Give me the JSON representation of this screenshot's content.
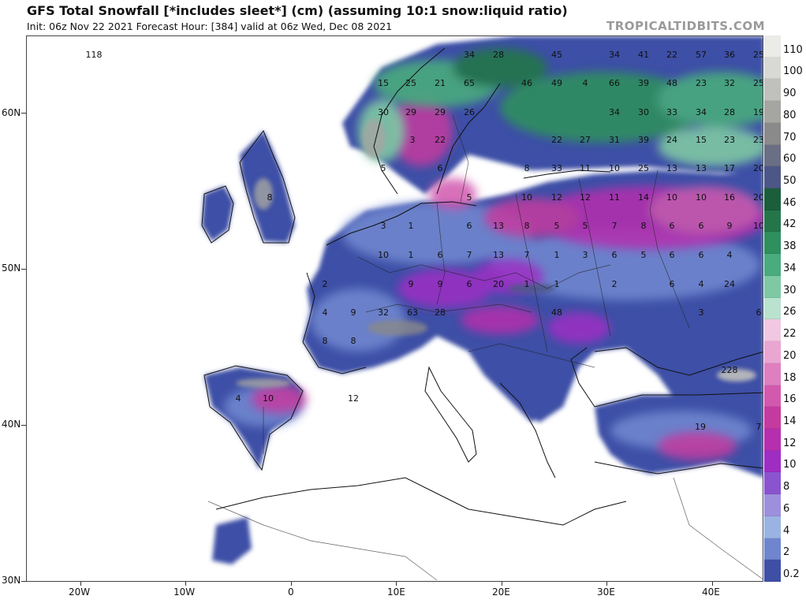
{
  "header": {
    "title": "GFS Total Snowfall [*includes sleet*] (cm) (assuming 10:1 snow:liquid ratio)",
    "subtitle": "Init: 06z Nov 22 2021   Forecast Hour: [384]   valid at 06z Wed, Dec 08 2021",
    "brand": "TROPICALTIDBITS.COM"
  },
  "axes": {
    "lat_labels": [
      "60N",
      "50N",
      "40N",
      "30N"
    ],
    "lon_labels": [
      "20W",
      "10W",
      "0",
      "10E",
      "20E",
      "30E",
      "40E"
    ]
  },
  "legend": {
    "items": [
      {
        "label": "110",
        "color": "#ebebe8"
      },
      {
        "label": "100",
        "color": "#d8d8d4"
      },
      {
        "label": "90",
        "color": "#c0c0bc"
      },
      {
        "label": "80",
        "color": "#a5a5a2"
      },
      {
        "label": "70",
        "color": "#8a8a8a"
      },
      {
        "label": "60",
        "color": "#6b6f85"
      },
      {
        "label": "50",
        "color": "#4c5788"
      },
      {
        "label": "46",
        "color": "#1b5e3b"
      },
      {
        "label": "42",
        "color": "#24764a"
      },
      {
        "label": "38",
        "color": "#2f8f5e"
      },
      {
        "label": "34",
        "color": "#4aab7e"
      },
      {
        "label": "30",
        "color": "#7fc8a4"
      },
      {
        "label": "26",
        "color": "#b9e2cf"
      },
      {
        "label": "22",
        "color": "#f2c7e2"
      },
      {
        "label": "20",
        "color": "#e9a6d2"
      },
      {
        "label": "18",
        "color": "#de7fc0"
      },
      {
        "label": "16",
        "color": "#d259ae"
      },
      {
        "label": "14",
        "color": "#c53a9f"
      },
      {
        "label": "12",
        "color": "#b62fae"
      },
      {
        "label": "10",
        "color": "#9e2dc4"
      },
      {
        "label": "8",
        "color": "#8a54d0"
      },
      {
        "label": "6",
        "color": "#9d8fdc"
      },
      {
        "label": "4",
        "color": "#9bb3e3"
      },
      {
        "label": "2",
        "color": "#6f86cf"
      },
      {
        "label": "0.2",
        "color": "#3e4fa6"
      }
    ]
  },
  "map_values": [
    {
      "t": "118"
    },
    {
      "t": "34"
    },
    {
      "t": "28"
    },
    {
      "t": "45"
    },
    {
      "t": "34"
    },
    {
      "t": "41"
    },
    {
      "t": "22"
    },
    {
      "t": "57"
    },
    {
      "t": "36"
    },
    {
      "t": "25"
    },
    {
      "t": "15"
    },
    {
      "t": "25"
    },
    {
      "t": "21"
    },
    {
      "t": "65"
    },
    {
      "t": "46"
    },
    {
      "t": "49"
    },
    {
      "t": "4"
    },
    {
      "t": "66"
    },
    {
      "t": "39"
    },
    {
      "t": "48"
    },
    {
      "t": "23"
    },
    {
      "t": "32"
    },
    {
      "t": "25"
    },
    {
      "t": "30"
    },
    {
      "t": "29"
    },
    {
      "t": "29"
    },
    {
      "t": "26"
    },
    {
      "t": "34"
    },
    {
      "t": "30"
    },
    {
      "t": "33"
    },
    {
      "t": "34"
    },
    {
      "t": "28"
    },
    {
      "t": "19"
    },
    {
      "t": "3"
    },
    {
      "t": "22"
    },
    {
      "t": "22"
    },
    {
      "t": "27"
    },
    {
      "t": "31"
    },
    {
      "t": "39"
    },
    {
      "t": "24"
    },
    {
      "t": "15"
    },
    {
      "t": "23"
    },
    {
      "t": "23"
    },
    {
      "t": "5"
    },
    {
      "t": "6"
    },
    {
      "t": "8"
    },
    {
      "t": "33"
    },
    {
      "t": "11"
    },
    {
      "t": "10"
    },
    {
      "t": "25"
    },
    {
      "t": "13"
    },
    {
      "t": "13"
    },
    {
      "t": "17"
    },
    {
      "t": "20"
    },
    {
      "t": "8"
    },
    {
      "t": "5"
    },
    {
      "t": "10"
    },
    {
      "t": "12"
    },
    {
      "t": "12"
    },
    {
      "t": "11"
    },
    {
      "t": "14"
    },
    {
      "t": "10"
    },
    {
      "t": "10"
    },
    {
      "t": "16"
    },
    {
      "t": "20"
    },
    {
      "t": "3"
    },
    {
      "t": "1"
    },
    {
      "t": "6"
    },
    {
      "t": "13"
    },
    {
      "t": "8"
    },
    {
      "t": "5"
    },
    {
      "t": "5"
    },
    {
      "t": "7"
    },
    {
      "t": "8"
    },
    {
      "t": "6"
    },
    {
      "t": "6"
    },
    {
      "t": "9"
    },
    {
      "t": "10"
    },
    {
      "t": "10"
    },
    {
      "t": "1"
    },
    {
      "t": "6"
    },
    {
      "t": "7"
    },
    {
      "t": "13"
    },
    {
      "t": "7"
    },
    {
      "t": "1"
    },
    {
      "t": "3"
    },
    {
      "t": "6"
    },
    {
      "t": "5"
    },
    {
      "t": "6"
    },
    {
      "t": "6"
    },
    {
      "t": "4"
    },
    {
      "t": "2"
    },
    {
      "t": "9"
    },
    {
      "t": "9"
    },
    {
      "t": "6"
    },
    {
      "t": "20"
    },
    {
      "t": "1"
    },
    {
      "t": "1"
    },
    {
      "t": "2"
    },
    {
      "t": "6"
    },
    {
      "t": "4"
    },
    {
      "t": "24"
    },
    {
      "t": "4"
    },
    {
      "t": "9"
    },
    {
      "t": "32"
    },
    {
      "t": "63"
    },
    {
      "t": "28"
    },
    {
      "t": "48"
    },
    {
      "t": "3"
    },
    {
      "t": "6"
    },
    {
      "t": "8"
    },
    {
      "t": "8"
    },
    {
      "t": "228"
    },
    {
      "t": "4"
    },
    {
      "t": "10"
    },
    {
      "t": "12"
    },
    {
      "t": "19"
    },
    {
      "t": "7"
    }
  ]
}
